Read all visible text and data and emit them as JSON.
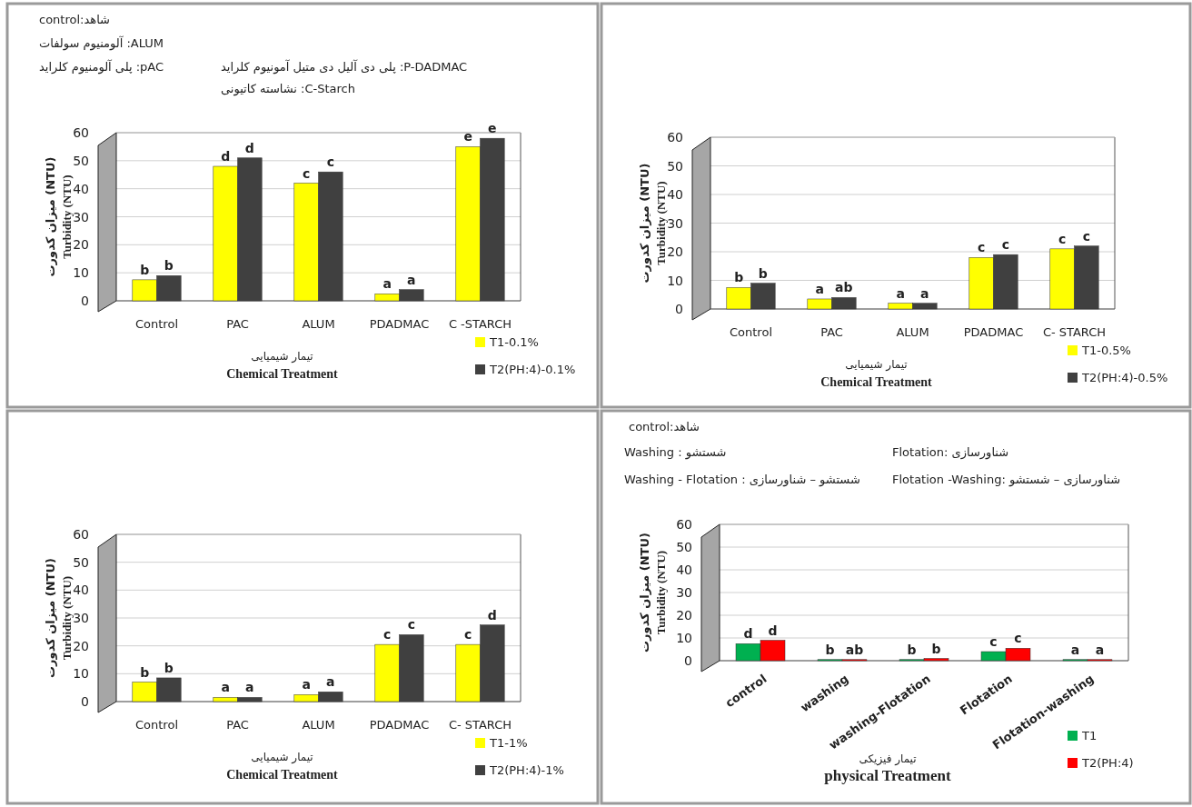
{
  "chart_data": [
    {
      "type": "bar",
      "categories": [
        "Control",
        "PAC",
        "ALUM",
        "PDADMAC",
        "C -STARCH"
      ],
      "xlabel": "تیمار شیمیایی\nChemical Treatment",
      "ylabel": "میزان کدورت (NTU)\nTurbidity (NTU)",
      "ylim": [
        0,
        60
      ],
      "yticks": [
        0,
        10,
        20,
        30,
        40,
        50,
        60
      ],
      "grid": "y",
      "legend": "bottom right",
      "annotations": [
        "control:شاهد",
        "آلومنیوم سولفات :ALUM",
        "پلی آلومنیوم کلراید :pAC",
        "پلی دی آلیل دی متیل آمونیوم کلراید :P-DADMAC",
        "نشاسته کاتیونی :C-Starch"
      ],
      "series": [
        {
          "name": "T1-0.1%",
          "color": "#ffff00",
          "values": [
            7.5,
            48,
            42,
            2.5,
            55
          ],
          "value_labels": [
            "b",
            "d",
            "c",
            "a",
            "e"
          ]
        },
        {
          "name": "T2(PH:4)-0.1%",
          "color": "#404040",
          "values": [
            9,
            51,
            46,
            4,
            58
          ],
          "value_labels": [
            "b",
            "d",
            "c",
            "a",
            "e"
          ]
        }
      ]
    },
    {
      "type": "bar",
      "categories": [
        "Control",
        "PAC",
        "ALUM",
        "PDADMAC",
        "C- STARCH"
      ],
      "xlabel": "تیمار شیمیایی\nChemical Treatment",
      "ylabel": "میزان کدورت (NTU)\nTurbidity (NTU)",
      "ylim": [
        0,
        60
      ],
      "yticks": [
        0,
        10,
        20,
        30,
        40,
        50,
        60
      ],
      "grid": "y",
      "legend": "bottom right",
      "series": [
        {
          "name": "T1-0.5%",
          "color": "#ffff00",
          "values": [
            7.5,
            3.5,
            2,
            18,
            21
          ],
          "value_labels": [
            "b",
            "a",
            "a",
            "c",
            "c"
          ]
        },
        {
          "name": "T2(PH:4)-0.5%",
          "color": "#404040",
          "values": [
            9,
            4,
            2,
            19,
            22
          ],
          "value_labels": [
            "b",
            "ab",
            "a",
            "c",
            "c"
          ]
        }
      ]
    },
    {
      "type": "bar",
      "categories": [
        "Control",
        "PAC",
        "ALUM",
        "PDADMAC",
        "C- STARCH"
      ],
      "xlabel": "تیمار شیمیایی\nChemical Treatment",
      "ylabel": "میزان کدورت (NTU)\nTurbidity (NTU)",
      "ylim": [
        0,
        60
      ],
      "yticks": [
        0,
        10,
        20,
        30,
        40,
        50,
        60
      ],
      "grid": "y",
      "legend": "bottom right",
      "series": [
        {
          "name": "T1-1%",
          "color": "#ffff00",
          "values": [
            7,
            1.5,
            2.5,
            20.5,
            20.5
          ],
          "value_labels": [
            "b",
            "a",
            "a",
            "c",
            "c"
          ]
        },
        {
          "name": "T2(PH:4)-1%",
          "color": "#404040",
          "values": [
            8.5,
            1.5,
            3.5,
            24,
            27.5
          ],
          "value_labels": [
            "b",
            "a",
            "a",
            "c",
            "d"
          ]
        }
      ]
    },
    {
      "type": "bar",
      "categories": [
        "control",
        "washing",
        "washing-Flotation",
        "Flotation",
        "Flotation-washing"
      ],
      "xlabel": "تیمار فیزیکی\nphysical Treatment",
      "ylabel": "میزان کدورت (NTU)\nTurbidity (NTU)",
      "ylim": [
        0,
        60
      ],
      "yticks": [
        0,
        10,
        20,
        30,
        40,
        50,
        60
      ],
      "grid": "y",
      "legend": "bottom right",
      "annotations": [
        "control:شاهد",
        "Washing : شستشو",
        "Flotation: شناورسازی",
        "Washing - Flotation : شستشو – شناورسازی",
        "Flotation -Washing: شناورسازی – شستشو"
      ],
      "series": [
        {
          "name": "T1",
          "color": "#00b050",
          "values": [
            7.5,
            0.5,
            0.5,
            4,
            0.5
          ],
          "value_labels": [
            "d",
            "b",
            "b",
            "c",
            "a"
          ]
        },
        {
          "name": "T2(PH:4)",
          "color": "#ff0000",
          "values": [
            9,
            0.5,
            1,
            5.5,
            0.5
          ],
          "value_labels": [
            "d",
            "ab",
            "b",
            "c",
            "a"
          ]
        }
      ]
    }
  ]
}
